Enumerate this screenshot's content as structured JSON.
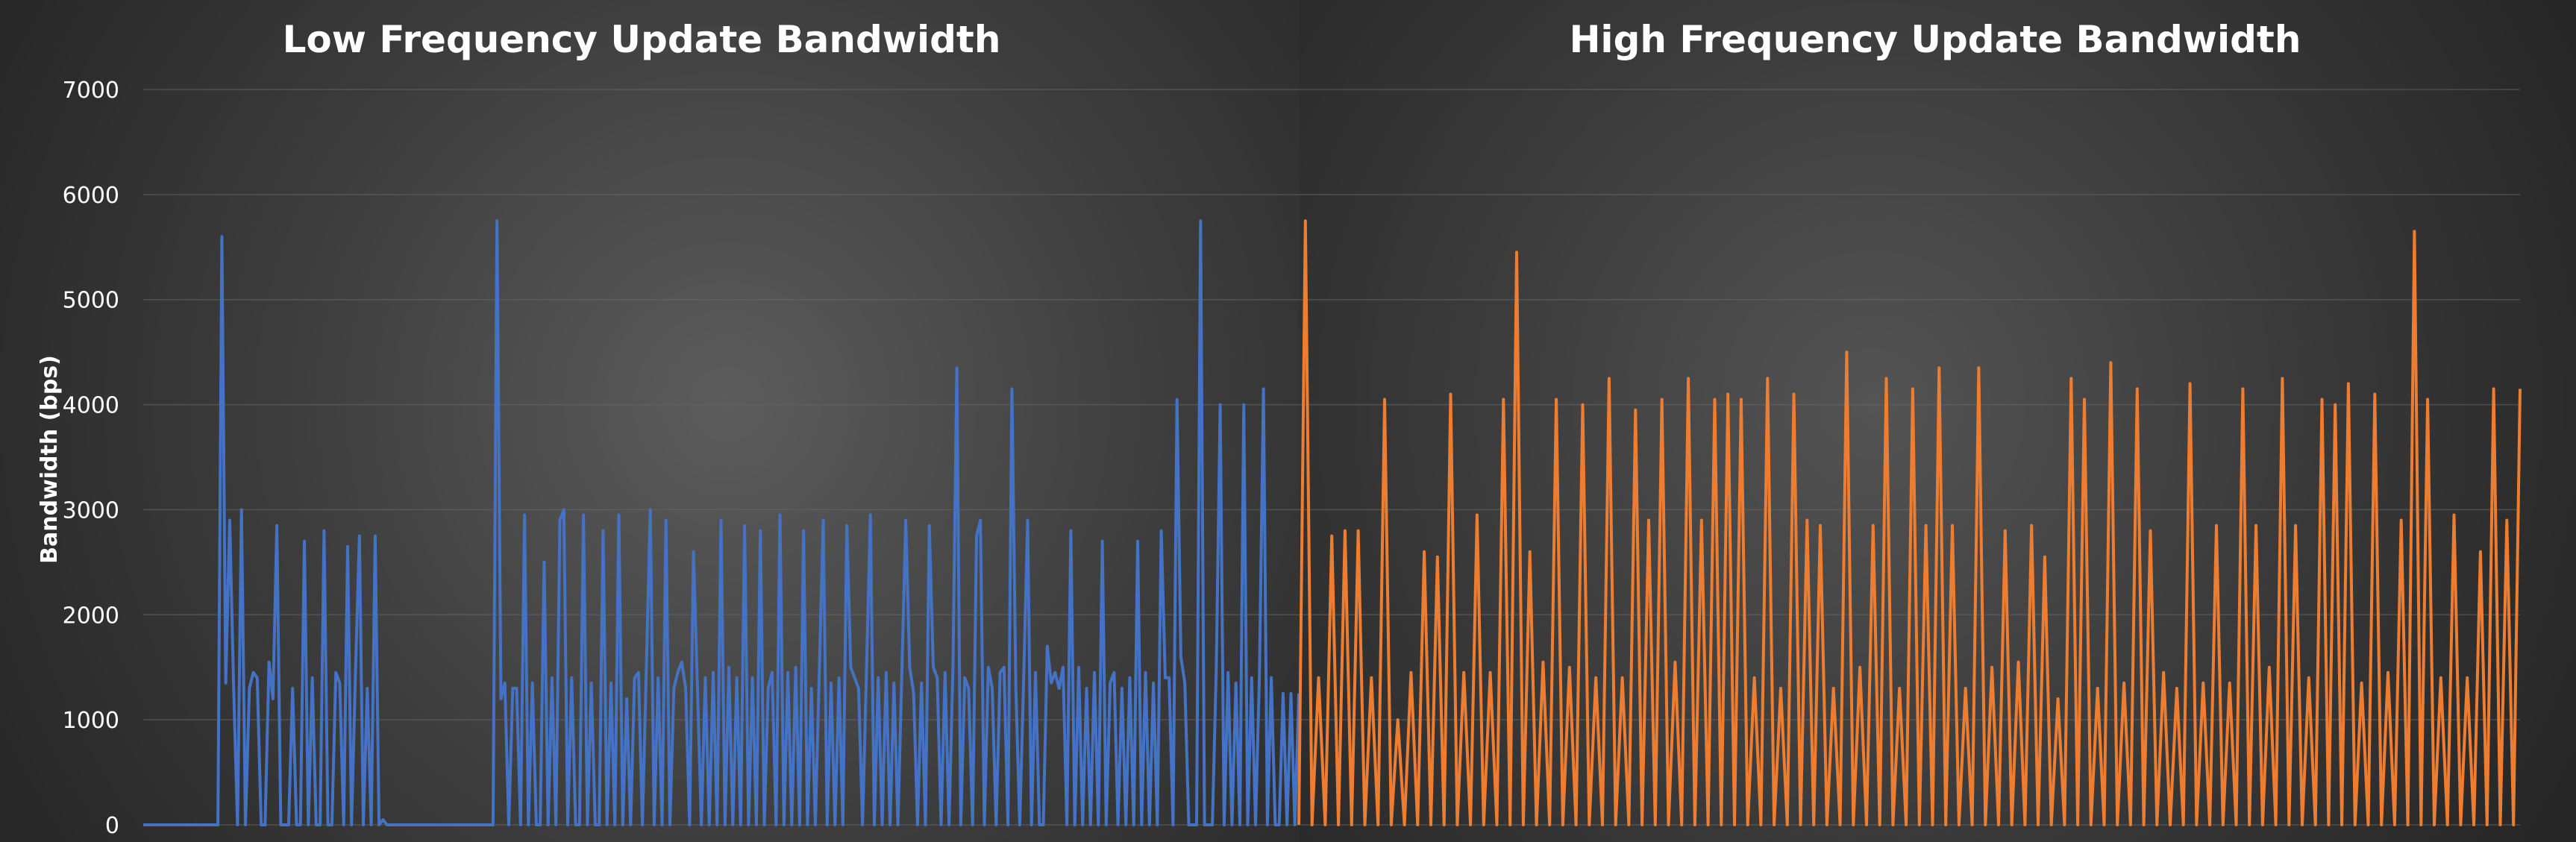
{
  "chart_data": [
    {
      "type": "line",
      "title": "Low Frequency Update Bandwidth",
      "ylabel": "Bandwidth (bps)",
      "xlabel": "",
      "ylim": [
        0,
        7000
      ],
      "yticks": [
        0,
        1000,
        2000,
        3000,
        4000,
        5000,
        6000,
        7000
      ],
      "grid": true,
      "color": "#4472c4",
      "series": [
        {
          "values": [
            0,
            0,
            0,
            0,
            0,
            0,
            0,
            0,
            0,
            0,
            0,
            0,
            0,
            0,
            0,
            0,
            0,
            0,
            0,
            0,
            5600,
            1350,
            2900,
            1300,
            0,
            3000,
            0,
            1300,
            1450,
            1400,
            0,
            0,
            1550,
            1200,
            2850,
            0,
            0,
            0,
            1300,
            0,
            0,
            2700,
            0,
            1400,
            0,
            0,
            2800,
            0,
            0,
            1450,
            1350,
            0,
            2650,
            0,
            1450,
            2750,
            0,
            1300,
            0,
            2750,
            0,
            50,
            0,
            0,
            0,
            0,
            0,
            0,
            0,
            0,
            0,
            0,
            0,
            0,
            0,
            0,
            0,
            0,
            0,
            0,
            0,
            0,
            0,
            0,
            0,
            0,
            0,
            0,
            0,
            0,
            5750,
            1200,
            1350,
            0,
            1300,
            1300,
            0,
            2950,
            0,
            1350,
            0,
            0,
            2500,
            0,
            1400,
            0,
            2900,
            3000,
            0,
            1400,
            0,
            0,
            2950,
            0,
            1350,
            0,
            0,
            2800,
            0,
            1350,
            0,
            2950,
            0,
            1200,
            0,
            1400,
            1450,
            0,
            1500,
            3000,
            0,
            1400,
            0,
            2900,
            0,
            1300,
            1450,
            1550,
            1300,
            0,
            2600,
            1300,
            0,
            1400,
            0,
            1450,
            0,
            2900,
            0,
            1500,
            0,
            1400,
            0,
            2850,
            0,
            1400,
            0,
            2800,
            0,
            1300,
            1450,
            0,
            2950,
            0,
            1450,
            0,
            1500,
            0,
            2800,
            0,
            1300,
            0,
            1450,
            2900,
            0,
            1350,
            0,
            1400,
            0,
            2850,
            1500,
            1400,
            1300,
            0,
            1450,
            2950,
            0,
            1400,
            0,
            1450,
            0,
            1350,
            0,
            1450,
            2900,
            1500,
            1250,
            0,
            1350,
            0,
            2850,
            1500,
            1400,
            0,
            1450,
            0,
            1500,
            4350,
            0,
            1400,
            1300,
            0,
            2750,
            2900,
            0,
            1500,
            1300,
            0,
            1450,
            1500,
            0,
            4150,
            1300,
            0,
            1400,
            2900,
            0,
            1450,
            0,
            0,
            1700,
            1350,
            1450,
            1300,
            1500,
            0,
            2800,
            0,
            1500,
            0,
            1300,
            0,
            1450,
            0,
            2700,
            0,
            1350,
            1450,
            0,
            1300,
            0,
            1400,
            0,
            2700,
            0,
            1450,
            0,
            1350,
            0,
            2800,
            1400,
            1400,
            0,
            4050,
            1600,
            1350,
            0,
            0,
            0,
            5750,
            0,
            0,
            0,
            1500,
            4000,
            0,
            1450,
            0,
            1350,
            0,
            4000,
            0,
            1400,
            0,
            1450,
            4150,
            0,
            1400,
            0,
            0,
            1250,
            0,
            1250,
            0,
            1250
          ]
        }
      ]
    },
    {
      "type": "line",
      "title": "High Frequency Update Bandwidth",
      "ylabel": "",
      "xlabel": "",
      "ylim": [
        0,
        7000
      ],
      "grid": true,
      "color": "#ed7d31",
      "series": [
        {
          "values": [
            0,
            5750,
            0,
            1400,
            0,
            2750,
            0,
            2800,
            0,
            2800,
            0,
            1400,
            0,
            4050,
            0,
            1000,
            0,
            1450,
            0,
            2600,
            0,
            2550,
            0,
            4100,
            0,
            1450,
            0,
            2950,
            0,
            1450,
            0,
            4050,
            0,
            5450,
            0,
            2600,
            0,
            1550,
            0,
            4050,
            0,
            1500,
            0,
            4000,
            0,
            1400,
            0,
            4250,
            0,
            1400,
            0,
            3950,
            0,
            2900,
            0,
            4050,
            0,
            1550,
            0,
            4250,
            0,
            2900,
            0,
            4050,
            0,
            4100,
            0,
            4050,
            0,
            1400,
            0,
            4250,
            0,
            1300,
            0,
            4100,
            0,
            2900,
            0,
            2850,
            0,
            1300,
            0,
            4500,
            0,
            1500,
            0,
            2850,
            0,
            4250,
            0,
            1300,
            0,
            4150,
            0,
            2850,
            0,
            4350,
            0,
            2850,
            0,
            1300,
            0,
            4350,
            0,
            1500,
            0,
            2800,
            0,
            1550,
            0,
            2850,
            0,
            2550,
            0,
            1200,
            0,
            4250,
            0,
            4050,
            0,
            1300,
            0,
            4400,
            0,
            1350,
            0,
            4150,
            0,
            2800,
            0,
            1450,
            0,
            1300,
            0,
            4200,
            0,
            1350,
            0,
            2850,
            0,
            1350,
            0,
            4150,
            0,
            2850,
            0,
            1500,
            0,
            4250,
            0,
            2850,
            0,
            1400,
            0,
            4050,
            0,
            4000,
            0,
            4200,
            0,
            1350,
            0,
            4100,
            0,
            1450,
            0,
            2900,
            0,
            5650,
            0,
            4050,
            0,
            1400,
            0,
            2950,
            0,
            1400,
            0,
            2600,
            0,
            4150,
            0,
            2900,
            0,
            4150
          ]
        }
      ]
    }
  ]
}
